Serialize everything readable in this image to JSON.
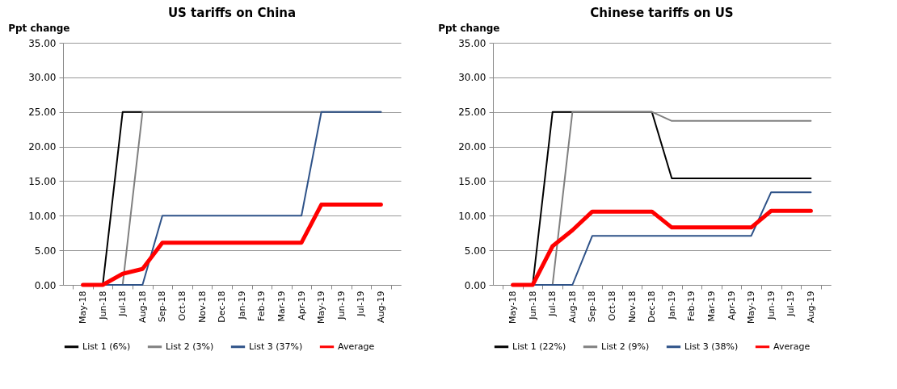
{
  "chart_data": [
    {
      "type": "line",
      "title": "US tariffs on China",
      "ylabel": "Ppt change",
      "categories": [
        "May-18",
        "Jun-18",
        "Jul-18",
        "Aug-18",
        "Sep-18",
        "Oct-18",
        "Nov-18",
        "Dec-18",
        "Jan-19",
        "Feb-19",
        "Mar-19",
        "Apr-19",
        "May-19",
        "Jun-19",
        "Jul-19",
        "Aug-19"
      ],
      "series": [
        {
          "name": "List 1 (6%)",
          "color": "#000000",
          "values": [
            0,
            0,
            25,
            25,
            null,
            null,
            null,
            null,
            null,
            null,
            null,
            null,
            null,
            null,
            null,
            null
          ]
        },
        {
          "name": "List 2 (3%)",
          "color": "#808080",
          "values": [
            0,
            0,
            0,
            25,
            25,
            25,
            25,
            25,
            25,
            25,
            25,
            25,
            25,
            25,
            25,
            25
          ]
        },
        {
          "name": "List 3 (37%)",
          "color": "#2e5288",
          "values": [
            0,
            0,
            0,
            0,
            10,
            10,
            10,
            10,
            10,
            10,
            10,
            10,
            25,
            25,
            25,
            25
          ]
        },
        {
          "name": "Average",
          "color": "#ff0000",
          "values": [
            0,
            0,
            1.6,
            2.3,
            6.1,
            6.1,
            6.1,
            6.1,
            6.1,
            6.1,
            6.1,
            6.1,
            11.6,
            11.6,
            11.6,
            11.6
          ]
        }
      ],
      "ylim": [
        0,
        35
      ],
      "yticks": [
        {
          "value": 0,
          "label": "0.00"
        },
        {
          "value": 5,
          "label": "5.00"
        },
        {
          "value": 10,
          "label": "10.00"
        },
        {
          "value": 15,
          "label": "15.00"
        },
        {
          "value": 20,
          "label": "20.00"
        },
        {
          "value": 25,
          "label": "25.00"
        },
        {
          "value": 30,
          "label": "30.00"
        },
        {
          "value": 35,
          "label": "35.00"
        }
      ],
      "grid": "y",
      "legend": "bottom"
    },
    {
      "type": "line",
      "title": "Chinese tariffs on US",
      "ylabel": "Ppt change",
      "categories": [
        "May-18",
        "Jun-18",
        "Jul-18",
        "Aug-18",
        "Sep-18",
        "Oct-18",
        "Nov-18",
        "Dec-18",
        "Jan-19",
        "Feb-19",
        "Mar-19",
        "Apr-19",
        "May-19",
        "Jun-19",
        "Jul-19",
        "Aug-19"
      ],
      "series": [
        {
          "name": "List 1 (22%)",
          "color": "#000000",
          "values": [
            0,
            0,
            25,
            25,
            25,
            25,
            25,
            25,
            15.4,
            15.4,
            15.4,
            15.4,
            15.4,
            15.4,
            15.4,
            15.4
          ]
        },
        {
          "name": "List 2 (9%)",
          "color": "#808080",
          "values": [
            0,
            0,
            0,
            25,
            25,
            25,
            25,
            25,
            23.7,
            23.7,
            23.7,
            23.7,
            23.7,
            23.7,
            23.7,
            23.7
          ]
        },
        {
          "name": "List 3 (38%)",
          "color": "#2e5288",
          "values": [
            0,
            0,
            0,
            0,
            7.1,
            7.1,
            7.1,
            7.1,
            7.1,
            7.1,
            7.1,
            7.1,
            7.1,
            13.4,
            13.4,
            13.4
          ]
        },
        {
          "name": "Average",
          "color": "#ff0000",
          "values": [
            0,
            0,
            5.6,
            7.9,
            10.6,
            10.6,
            10.6,
            10.6,
            8.3,
            8.3,
            8.3,
            8.3,
            8.3,
            10.7,
            10.7,
            10.7
          ]
        }
      ],
      "ylim": [
        0,
        35
      ],
      "yticks": [
        {
          "value": 0,
          "label": "0.00"
        },
        {
          "value": 5,
          "label": "5.00"
        },
        {
          "value": 10,
          "label": "10.00"
        },
        {
          "value": 15,
          "label": "15.00"
        },
        {
          "value": 20,
          "label": "20.00"
        },
        {
          "value": 25,
          "label": "25.00"
        },
        {
          "value": 30,
          "label": "30.00"
        },
        {
          "value": 35,
          "label": "35.00"
        }
      ],
      "grid": "y",
      "legend": "bottom"
    }
  ]
}
